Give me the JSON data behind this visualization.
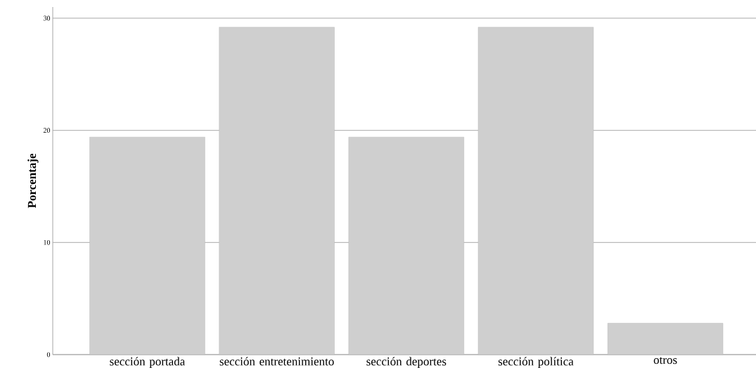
{
  "chart_data": {
    "type": "bar",
    "ylabel": "Porcentaje",
    "categories": [
      "sección portada",
      "sección entretenimiento",
      "sección deportes",
      "sección política",
      "otros"
    ],
    "values": [
      19.4,
      29.2,
      19.4,
      29.2,
      2.8
    ],
    "color": "#cfcfcf",
    "ylim": [
      0,
      31
    ],
    "yticks": [
      0,
      10,
      20,
      30
    ],
    "grid": "y"
  }
}
